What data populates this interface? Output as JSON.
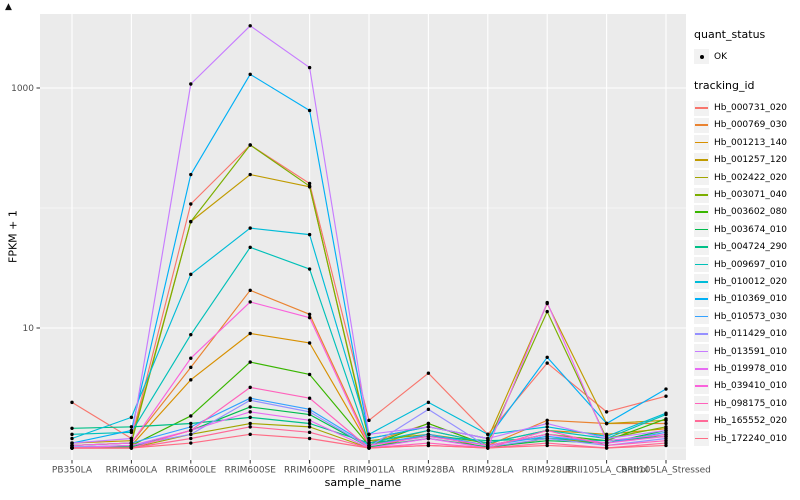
{
  "figure": {
    "stray_marker": "▲",
    "xlabel": "sample_name",
    "ylabel": "FPKM + 1"
  },
  "legend": {
    "quant_status": {
      "title": "quant_status",
      "items": [
        {
          "label": "OK",
          "marker": "point"
        }
      ]
    },
    "tracking_id": {
      "title": "tracking_id"
    }
  },
  "chart_data": {
    "type": "line",
    "title": "",
    "xlabel": "sample_name",
    "ylabel": "FPKM + 1",
    "y_scale": "log10",
    "y_ticks": [
      10,
      1000
    ],
    "y_minor": [
      1,
      100
    ],
    "ylim": [
      0.87,
      4200
    ],
    "grid": true,
    "legend_position": "right",
    "panel_bg": "#EBEBEB",
    "grid_color": "#FFFFFF",
    "point_color": "#000000",
    "tick_label_color": "#4D4D4D",
    "categories": [
      "PB350LA",
      "RRIM600LA",
      "RRIM600LE",
      "RRIM600SE",
      "RRIM600PE",
      "RRIM901LA",
      "RRIM928BA",
      "RRIM928LA",
      "RRIM928LE",
      "RRII105LA_Control",
      "RRII105LA_Stressed"
    ],
    "series": [
      {
        "name": "Hb_000731_020",
        "color": "#F8766D",
        "values": [
          2.4,
          1.2,
          108,
          335,
          160,
          1.7,
          4.2,
          1.3,
          5.1,
          2.0,
          2.7
        ]
      },
      {
        "name": "Hb_000769_030",
        "color": "#EA8331",
        "values": [
          1.05,
          1.1,
          4.7,
          20.6,
          13.0,
          1.1,
          1.6,
          1.05,
          1.7,
          1.6,
          1.6
        ]
      },
      {
        "name": "Hb_001213_140",
        "color": "#D89000",
        "values": [
          1.0,
          1.05,
          3.7,
          9.0,
          7.5,
          1.05,
          1.4,
          1.1,
          1.4,
          1.3,
          1.45
        ]
      },
      {
        "name": "Hb_001257_120",
        "color": "#C09B00",
        "values": [
          1.1,
          1.15,
          77,
          190,
          150,
          1.2,
          1.5,
          1.2,
          16.0,
          1.6,
          1.7
        ]
      },
      {
        "name": "Hb_002422_020",
        "color": "#A3A500",
        "values": [
          1.0,
          1.0,
          1.3,
          1.6,
          1.5,
          1.0,
          1.3,
          1.0,
          1.2,
          1.1,
          1.3
        ]
      },
      {
        "name": "Hb_003071_040",
        "color": "#7CAE00",
        "values": [
          1.05,
          1.1,
          77,
          335,
          152,
          1.15,
          1.3,
          1.1,
          13.7,
          1.2,
          1.5
        ]
      },
      {
        "name": "Hb_003602_080",
        "color": "#39B600",
        "values": [
          1.0,
          1.05,
          1.85,
          5.2,
          4.1,
          1.05,
          1.6,
          1.05,
          1.3,
          1.15,
          1.75
        ]
      },
      {
        "name": "Hb_003674_010",
        "color": "#00BB4E",
        "values": [
          1.02,
          1.02,
          1.4,
          2.2,
          1.9,
          1.02,
          1.2,
          1.02,
          1.15,
          1.1,
          1.4
        ]
      },
      {
        "name": "Hb_004724_290",
        "color": "#00C087",
        "values": [
          1.46,
          1.5,
          1.6,
          1.8,
          1.6,
          1.1,
          1.25,
          1.15,
          1.2,
          1.15,
          1.25
        ]
      },
      {
        "name": "Hb_009697_010",
        "color": "#00C0B8",
        "values": [
          1.3,
          1.35,
          8.8,
          47,
          31,
          1.1,
          1.4,
          1.1,
          1.4,
          1.2,
          1.9
        ]
      },
      {
        "name": "Hb_010012_020",
        "color": "#00BCD8",
        "values": [
          1.2,
          1.8,
          28,
          68,
          60,
          1.3,
          2.4,
          1.3,
          1.5,
          1.25,
          1.95
        ]
      },
      {
        "name": "Hb_010369_010",
        "color": "#00B0F6",
        "values": [
          1.1,
          1.4,
          190,
          1300,
          650,
          1.2,
          1.5,
          1.2,
          5.7,
          1.6,
          3.1
        ]
      },
      {
        "name": "Hb_010573_030",
        "color": "#35A2FF",
        "values": [
          1.05,
          1.1,
          1.5,
          2.6,
          2.1,
          1.05,
          1.3,
          1.05,
          1.25,
          1.1,
          1.35
        ]
      },
      {
        "name": "Hb_011429_010",
        "color": "#9590FF",
        "values": [
          1.02,
          1.05,
          1.3,
          2.5,
          2.0,
          1.02,
          2.1,
          1.02,
          1.2,
          1.05,
          1.2
        ]
      },
      {
        "name": "Hb_013591_010",
        "color": "#C77CFF",
        "values": [
          1.1,
          1.2,
          1080,
          3300,
          1480,
          1.3,
          1.5,
          1.2,
          1.6,
          1.2,
          1.4
        ]
      },
      {
        "name": "Hb_019978_010",
        "color": "#E76BF3",
        "values": [
          1.0,
          1.05,
          1.4,
          2.0,
          1.7,
          1.0,
          1.2,
          1.0,
          16.3,
          1.15,
          1.3
        ]
      },
      {
        "name": "Hb_039410_010",
        "color": "#FA62DB",
        "values": [
          1.05,
          1.1,
          5.6,
          16.5,
          12.2,
          1.05,
          1.25,
          1.05,
          1.3,
          1.1,
          1.25
        ]
      },
      {
        "name": "Hb_098175_010",
        "color": "#FF62BC",
        "values": [
          1.0,
          1.0,
          1.4,
          3.2,
          2.6,
          1.0,
          1.1,
          1.0,
          1.4,
          1.05,
          1.15
        ]
      },
      {
        "name": "Hb_165552_020",
        "color": "#FF6A98",
        "values": [
          1.0,
          1.0,
          1.2,
          1.5,
          1.35,
          1.0,
          1.05,
          1.0,
          1.1,
          1.0,
          1.1
        ]
      },
      {
        "name": "Hb_172240_010",
        "color": "#FF6C85",
        "values": [
          1.0,
          1.0,
          1.1,
          1.3,
          1.2,
          1.0,
          1.05,
          1.0,
          1.05,
          1.0,
          1.05
        ]
      }
    ]
  }
}
